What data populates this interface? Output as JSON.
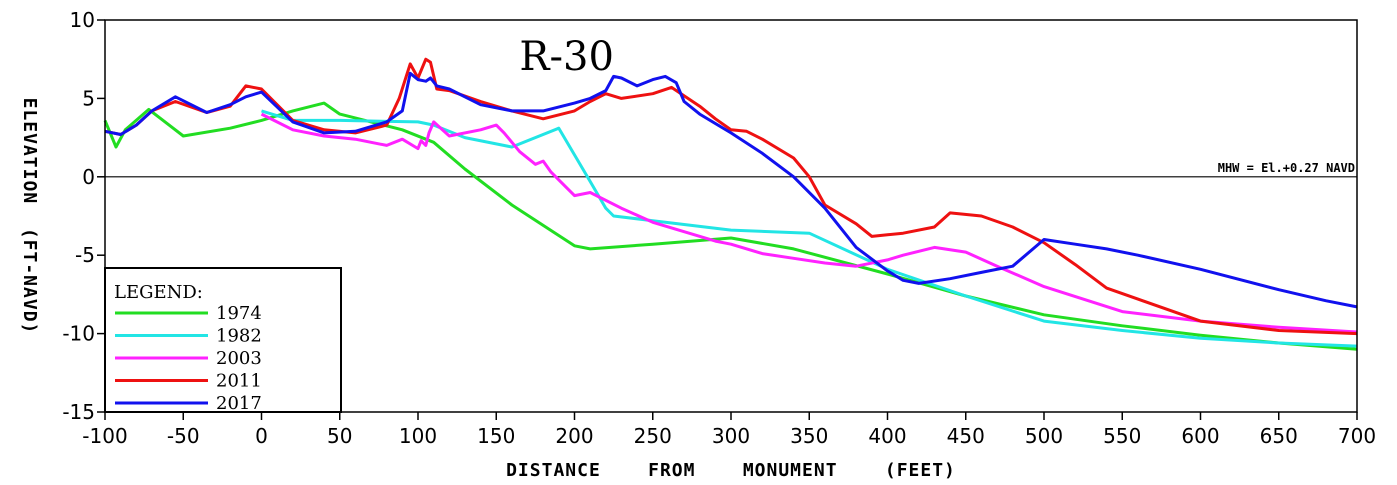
{
  "chart_data": {
    "type": "line",
    "title": "R-30",
    "xlabel": "DISTANCE    FROM    MONUMENT    (FEET)",
    "ylabel": "ELEVATION  (FT-NAVD)",
    "xlim": [
      -100,
      700
    ],
    "ylim": [
      -15,
      10
    ],
    "x_ticks": [
      -100,
      -50,
      0,
      50,
      100,
      150,
      200,
      250,
      300,
      350,
      400,
      450,
      500,
      550,
      600,
      650,
      700
    ],
    "y_ticks": [
      -15,
      -10,
      -5,
      0,
      5,
      10
    ],
    "grid": false,
    "reference_line": {
      "y": 0,
      "label": "MHW = El.+0.27 NAVD"
    },
    "legend": {
      "title": "LEGEND:",
      "position": "bottom-left"
    },
    "series": [
      {
        "name": "1974",
        "color": "#22dd22",
        "x": [
          -100,
          -93,
          -87,
          -72,
          -50,
          -20,
          0,
          20,
          40,
          50,
          70,
          90,
          110,
          130,
          160,
          200,
          210,
          250,
          300,
          340,
          400,
          450,
          500,
          550,
          600,
          650,
          700
        ],
        "y": [
          3.6,
          1.9,
          3.0,
          4.3,
          2.6,
          3.1,
          3.6,
          4.2,
          4.7,
          4.0,
          3.5,
          3.0,
          2.2,
          0.5,
          -1.8,
          -4.4,
          -4.6,
          -4.3,
          -3.9,
          -4.6,
          -6.2,
          -7.6,
          -8.8,
          -9.5,
          -10.1,
          -10.6,
          -11.0
        ]
      },
      {
        "name": "1982",
        "color": "#22e5e5",
        "x": [
          0,
          20,
          50,
          100,
          110,
          130,
          160,
          190,
          210,
          220,
          225,
          250,
          300,
          350,
          400,
          450,
          500,
          550,
          600,
          650,
          700
        ],
        "y": [
          4.2,
          3.6,
          3.6,
          3.5,
          3.3,
          2.5,
          1.9,
          3.1,
          -0.3,
          -2.0,
          -2.5,
          -2.8,
          -3.4,
          -3.6,
          -5.9,
          -7.6,
          -9.2,
          -9.8,
          -10.3,
          -10.6,
          -10.8
        ]
      },
      {
        "name": "2003",
        "color": "#ff22ff",
        "x": [
          0,
          20,
          40,
          60,
          80,
          90,
          100,
          102,
          105,
          107,
          110,
          120,
          140,
          150,
          155,
          165,
          175,
          180,
          185,
          195,
          200,
          210,
          230,
          250,
          270,
          290,
          300,
          320,
          340,
          360,
          380,
          400,
          410,
          430,
          450,
          470,
          500,
          550,
          600,
          650,
          700
        ],
        "y": [
          4.0,
          3.0,
          2.6,
          2.4,
          2.0,
          2.4,
          1.8,
          2.3,
          2.0,
          2.8,
          3.5,
          2.6,
          3.0,
          3.3,
          2.8,
          1.6,
          0.8,
          1.0,
          0.3,
          -0.7,
          -1.2,
          -1.0,
          -2.0,
          -2.9,
          -3.5,
          -4.1,
          -4.3,
          -4.9,
          -5.2,
          -5.5,
          -5.7,
          -5.3,
          -5.0,
          -4.5,
          -4.8,
          -5.7,
          -7.0,
          -8.6,
          -9.2,
          -9.6,
          -9.9
        ]
      },
      {
        "name": "2011",
        "color": "#ee1111",
        "x": [
          -100,
          -90,
          -80,
          -70,
          -55,
          -35,
          -20,
          -10,
          0,
          20,
          40,
          60,
          80,
          88,
          95,
          100,
          105,
          108,
          112,
          120,
          140,
          160,
          180,
          200,
          210,
          220,
          230,
          250,
          262,
          280,
          290,
          300,
          310,
          320,
          340,
          350,
          360,
          380,
          390,
          400,
          410,
          430,
          440,
          460,
          480,
          500,
          520,
          540,
          560,
          600,
          650,
          700
        ],
        "y": [
          2.9,
          2.7,
          3.3,
          4.2,
          4.8,
          4.1,
          4.5,
          5.8,
          5.6,
          3.6,
          3.0,
          2.8,
          3.3,
          5.0,
          7.2,
          6.3,
          7.5,
          7.3,
          5.6,
          5.5,
          4.8,
          4.2,
          3.7,
          4.2,
          4.8,
          5.3,
          5.0,
          5.3,
          5.7,
          4.5,
          3.7,
          3.0,
          2.9,
          2.4,
          1.2,
          0.0,
          -1.8,
          -3.0,
          -3.8,
          -3.7,
          -3.6,
          -3.2,
          -2.3,
          -2.5,
          -3.2,
          -4.2,
          -5.6,
          -7.1,
          -7.8,
          -9.2,
          -9.8,
          -10.0
        ]
      },
      {
        "name": "2017",
        "color": "#1111ee",
        "x": [
          -100,
          -90,
          -80,
          -70,
          -55,
          -35,
          -20,
          -10,
          0,
          20,
          40,
          60,
          80,
          90,
          95,
          100,
          105,
          108,
          112,
          120,
          140,
          160,
          180,
          200,
          210,
          220,
          225,
          230,
          240,
          250,
          258,
          265,
          270,
          280,
          300,
          320,
          340,
          360,
          380,
          400,
          410,
          420,
          440,
          460,
          480,
          500,
          520,
          540,
          560,
          600,
          650,
          680,
          700
        ],
        "y": [
          2.9,
          2.7,
          3.3,
          4.2,
          5.1,
          4.1,
          4.6,
          5.1,
          5.4,
          3.5,
          2.8,
          2.9,
          3.5,
          4.2,
          6.6,
          6.2,
          6.1,
          6.3,
          5.8,
          5.6,
          4.6,
          4.2,
          4.2,
          4.7,
          5.0,
          5.5,
          6.4,
          6.3,
          5.8,
          6.2,
          6.4,
          6.0,
          4.8,
          4.0,
          2.8,
          1.5,
          0.0,
          -2.0,
          -4.5,
          -6.0,
          -6.6,
          -6.8,
          -6.5,
          -6.1,
          -5.7,
          -4.0,
          -4.3,
          -4.6,
          -5.0,
          -5.9,
          -7.2,
          -7.9,
          -8.3
        ]
      }
    ]
  }
}
